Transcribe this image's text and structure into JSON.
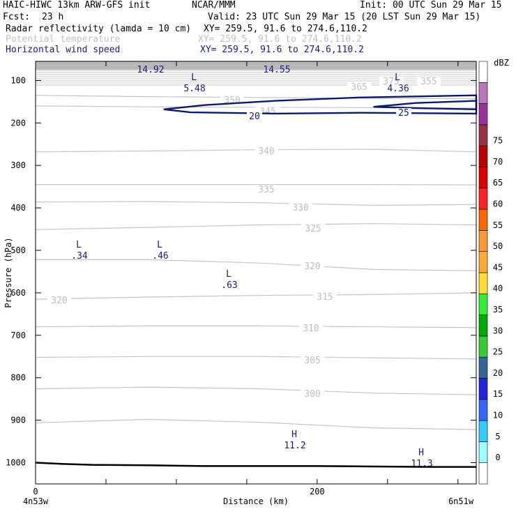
{
  "header": {
    "model": "HAIC-HIWC 13km ARW-GFS init",
    "org": "NCAR/MMM",
    "init": "Init: 00 UTC Sun 29 Mar 15",
    "fcst_label": "Fcst:",
    "fcst_value": "23 h",
    "valid": "Valid: 23 UTC Sun 29 Mar 15 (20 LST Sun 29 Mar 15)",
    "fields": [
      {
        "name": "Radar reflectivity (lamda = 10 cm)",
        "xy": "XY= 259.5, 91.6 to 274.6,110.2",
        "color": "#000000"
      },
      {
        "name": "Potential temperature",
        "xy": "XY= 259.5, 91.6 to 274.6,110.2",
        "color": "#c0c0c0"
      },
      {
        "name": "Horizontal wind speed",
        "xy": "XY= 259.5, 91.6 to 274.6,110.2",
        "color": "#1a1a80"
      }
    ]
  },
  "chart_data": {
    "type": "line",
    "title": "",
    "xlabel": "Distance (km)",
    "ylabel": "Pressure (hPa)",
    "x_left_label": "4n53w",
    "x_right_label": "6n51w",
    "x_ticks": [
      "0",
      "200"
    ],
    "y_ticks": [
      "100",
      "200",
      "300",
      "400",
      "500",
      "600",
      "700",
      "800",
      "900",
      "1000"
    ],
    "ylim": [
      1050,
      55
    ],
    "xlim": [
      0,
      313
    ],
    "theta_contours": [
      {
        "label": "355",
        "x": [
          0,
          80,
          160,
          240,
          313
        ],
        "y": [
          135,
          138,
          140,
          142,
          143
        ]
      },
      {
        "label": "350",
        "x": [
          0,
          80,
          160,
          240,
          313
        ],
        "y": [
          160,
          162,
          163,
          164,
          165
        ]
      },
      {
        "label": "345",
        "x": [
          0,
          80,
          160,
          240,
          313
        ],
        "y": [
          268,
          266,
          263,
          262,
          268
        ]
      },
      {
        "label": "340",
        "x": [
          0,
          80,
          160,
          240,
          313
        ],
        "y": [
          345,
          345,
          345,
          345,
          346
        ]
      },
      {
        "label": "335",
        "x": [
          0,
          80,
          160,
          240,
          313
        ],
        "y": [
          386,
          385,
          388,
          394,
          392
        ]
      },
      {
        "label": "330",
        "x": [
          0,
          80,
          160,
          240,
          313
        ],
        "y": [
          451,
          446,
          440,
          437,
          440
        ]
      },
      {
        "label": "325",
        "x": [
          0,
          80,
          160,
          240,
          313
        ],
        "y": [
          522,
          522,
          530,
          545,
          548
        ]
      },
      {
        "label": "320",
        "x": [
          0,
          80,
          160,
          240,
          313
        ],
        "y": [
          615,
          610,
          606,
          604,
          600
        ]
      },
      {
        "label": "315",
        "x": [
          0,
          80,
          160,
          240,
          313
        ],
        "y": [
          680,
          678,
          678,
          680,
          682
        ]
      },
      {
        "label": "310",
        "x": [
          0,
          80,
          160,
          240,
          313
        ],
        "y": [
          752,
          750,
          750,
          753,
          756
        ]
      },
      {
        "label": "305",
        "x": [
          0,
          80,
          160,
          240,
          313
        ],
        "y": [
          826,
          822,
          826,
          836,
          840
        ]
      },
      {
        "label": "300",
        "x": [
          0,
          80,
          160,
          240,
          313
        ],
        "y": [
          906,
          898,
          905,
          918,
          922
        ]
      }
    ],
    "theta_labels": [
      "365",
      "375",
      "355",
      "350",
      "345",
      "340",
      "335",
      "330",
      "325",
      "320",
      "320",
      "315",
      "310",
      "305",
      "300"
    ],
    "wind_contours": [
      {
        "label": "20",
        "x": [
          91,
          120,
          170,
          230,
          313,
          313,
          230,
          170,
          110,
          91
        ],
        "y": [
          168,
          158,
          148,
          140,
          135,
          178,
          176,
          178,
          175,
          168
        ]
      },
      {
        "label": "25",
        "x": [
          240,
          270,
          313,
          313,
          270,
          240
        ],
        "y": [
          162,
          153,
          148,
          168,
          165,
          162
        ]
      }
    ],
    "wind_labels": [
      "20",
      "25"
    ],
    "extrema": [
      {
        "kind": "L",
        "value": "5.48"
      },
      {
        "kind": "L",
        "value": "4.36"
      },
      {
        "kind": "L",
        "value": ".34"
      },
      {
        "kind": "L",
        "value": ".46"
      },
      {
        "kind": "L",
        "value": ".63"
      },
      {
        "kind": "H",
        "value": "11.2"
      },
      {
        "kind": "H",
        "value": "11.3"
      }
    ],
    "top_values": [
      "14.92",
      "14.55"
    ],
    "surface": {
      "x": [
        0,
        20,
        40,
        80,
        120,
        160,
        200,
        240,
        280,
        313
      ],
      "y": [
        1000,
        1003,
        1005,
        1006,
        1008,
        1008,
        1008,
        1009,
        1010,
        1010
      ]
    },
    "colorbar": {
      "unit": "dBZ",
      "levels": [
        "0",
        "5",
        "10",
        "15",
        "20",
        "25",
        "30",
        "35",
        "40",
        "45",
        "50",
        "55",
        "60",
        "65",
        "70",
        "75"
      ],
      "colors": [
        "#ffffff",
        "#99ffff",
        "#33ccff",
        "#3366ff",
        "#2222dd",
        "#336699",
        "#33cc33",
        "#00aa00",
        "#33ee33",
        "#ffdd33",
        "#ffaa33",
        "#ff9933",
        "#ff6600",
        "#ff2222",
        "#dd0000",
        "#bb0000",
        "#993344",
        "#993399",
        "#bb77bb",
        "#ffffff"
      ]
    }
  }
}
